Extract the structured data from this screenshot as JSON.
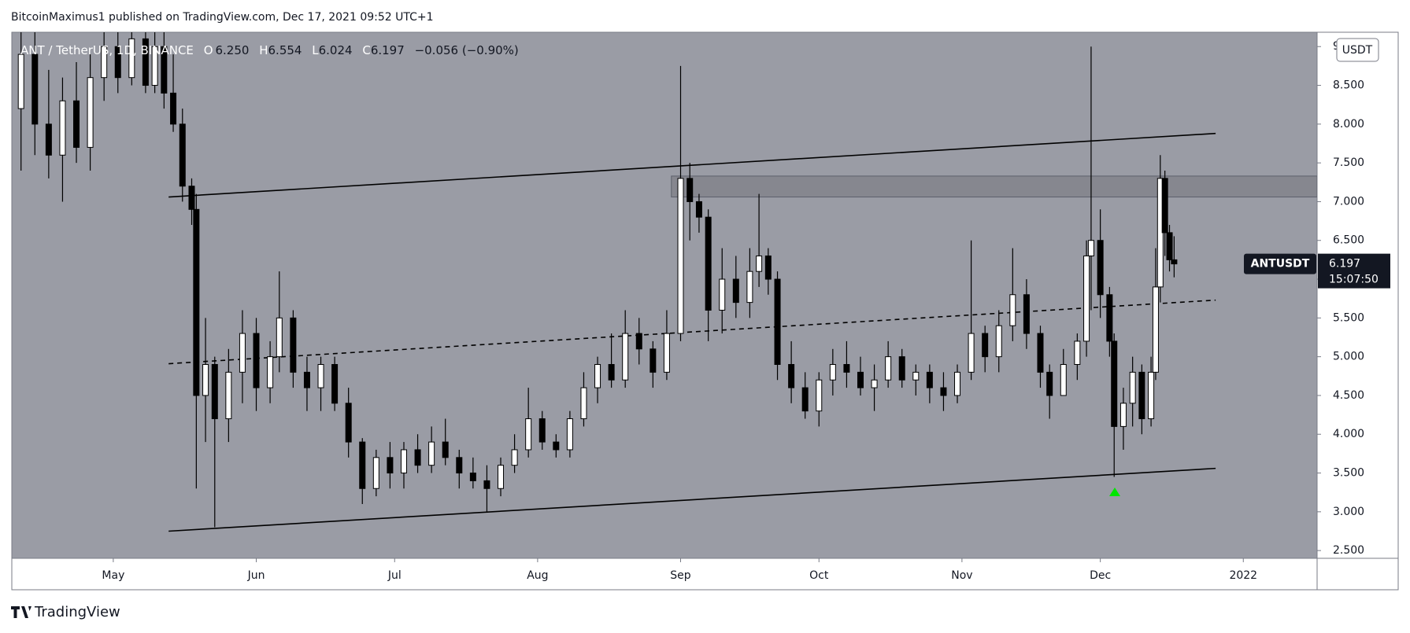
{
  "header": "BitcoinMaximus1 published on TradingView.com, Dec 17, 2021 09:52 UTC+1",
  "footer": "TradingView",
  "chart_data": {
    "type": "candlestick",
    "legend": {
      "symbol": "ANT / TetherUS, 1D, BINANCE",
      "fields": [
        {
          "key": "O",
          "value": "6.250"
        },
        {
          "key": "H",
          "value": "6.554"
        },
        {
          "key": "L",
          "value": "6.024"
        },
        {
          "key": "C",
          "value": "6.197"
        }
      ],
      "change": "−0.056 (−0.90%)"
    },
    "currency": "USDT",
    "symbol_tag": "ANTUSDT",
    "last_price": {
      "value": 6.197,
      "label": "6.197"
    },
    "countdown": "15:07:50",
    "background": "#9a9ca5",
    "up_color": "#ffffff",
    "down_color": "#000000",
    "xlim": [
      "2021-04-09",
      "2022-01-17"
    ],
    "xticks": [
      {
        "value": "2021-05-01",
        "label": "May"
      },
      {
        "value": "2021-06-01",
        "label": "Jun"
      },
      {
        "value": "2021-07-01",
        "label": "Jul"
      },
      {
        "value": "2021-08-01",
        "label": "Aug"
      },
      {
        "value": "2021-09-01",
        "label": "Sep"
      },
      {
        "value": "2021-10-01",
        "label": "Oct"
      },
      {
        "value": "2021-11-01",
        "label": "Nov"
      },
      {
        "value": "2021-12-01",
        "label": "Dec"
      },
      {
        "value": "2022-01-01",
        "label": "2022"
      }
    ],
    "ylim": [
      2.4,
      9.185
    ],
    "yticks": [
      {
        "value": 2.5,
        "label": "2.500"
      },
      {
        "value": 3,
        "label": "3.000"
      },
      {
        "value": 3.5,
        "label": "3.500"
      },
      {
        "value": 4,
        "label": "4.000"
      },
      {
        "value": 4.5,
        "label": "4.500"
      },
      {
        "value": 5,
        "label": "5.000"
      },
      {
        "value": 5.5,
        "label": "5.500"
      },
      {
        "value": 6,
        "label": "6.000"
      },
      {
        "value": 6.5,
        "label": "6.500"
      },
      {
        "value": 7,
        "label": "7.000"
      },
      {
        "value": 7.5,
        "label": "7.500"
      },
      {
        "value": 8,
        "label": "8.000"
      },
      {
        "value": 8.5,
        "label": "8.500"
      },
      {
        "value": 9,
        "label": "9"
      }
    ],
    "trendlines": [
      {
        "start": [
          "2021-05-13",
          7.06
        ],
        "end": [
          "2021-12-26",
          7.88
        ],
        "style": "solid"
      },
      {
        "start": [
          "2021-05-13",
          4.91
        ],
        "end": [
          "2021-12-26",
          5.73
        ],
        "style": "dashed"
      },
      {
        "start": [
          "2021-05-13",
          2.75
        ],
        "end": [
          "2021-12-26",
          3.56
        ],
        "style": "solid"
      }
    ],
    "zone": {
      "start": "2021-08-30",
      "low": 7.06,
      "high": 7.33
    },
    "x": [
      "2021-04-11",
      "2021-04-14",
      "2021-04-17",
      "2021-04-20",
      "2021-04-23",
      "2021-04-26",
      "2021-04-29",
      "2021-05-02",
      "2021-05-05",
      "2021-05-08",
      "2021-05-10",
      "2021-05-12",
      "2021-05-14",
      "2021-05-16",
      "2021-05-18",
      "2021-05-19",
      "2021-05-21",
      "2021-05-23",
      "2021-05-26",
      "2021-05-29",
      "2021-06-01",
      "2021-06-04",
      "2021-06-06",
      "2021-06-09",
      "2021-06-12",
      "2021-06-15",
      "2021-06-18",
      "2021-06-21",
      "2021-06-24",
      "2021-06-27",
      "2021-06-30",
      "2021-07-03",
      "2021-07-06",
      "2021-07-09",
      "2021-07-12",
      "2021-07-15",
      "2021-07-18",
      "2021-07-21",
      "2021-07-24",
      "2021-07-27",
      "2021-07-30",
      "2021-08-02",
      "2021-08-05",
      "2021-08-08",
      "2021-08-11",
      "2021-08-14",
      "2021-08-17",
      "2021-08-20",
      "2021-08-23",
      "2021-08-26",
      "2021-08-29",
      "2021-09-01",
      "2021-09-03",
      "2021-09-05",
      "2021-09-07",
      "2021-09-10",
      "2021-09-13",
      "2021-09-16",
      "2021-09-18",
      "2021-09-20",
      "2021-09-22",
      "2021-09-25",
      "2021-09-28",
      "2021-10-01",
      "2021-10-04",
      "2021-10-07",
      "2021-10-10",
      "2021-10-13",
      "2021-10-16",
      "2021-10-19",
      "2021-10-22",
      "2021-10-25",
      "2021-10-28",
      "2021-10-31",
      "2021-11-03",
      "2021-11-06",
      "2021-11-09",
      "2021-11-12",
      "2021-11-15",
      "2021-11-18",
      "2021-11-20",
      "2021-11-23",
      "2021-11-26",
      "2021-11-28",
      "2021-11-29",
      "2021-12-01",
      "2021-12-03",
      "2021-12-04",
      "2021-12-06",
      "2021-12-08",
      "2021-12-10",
      "2021-12-12",
      "2021-12-13",
      "2021-12-14",
      "2021-12-15",
      "2021-12-16",
      "2021-12-17"
    ],
    "open": [
      8.2,
      8.9,
      8.0,
      7.6,
      8.3,
      7.7,
      8.6,
      9.0,
      8.6,
      9.1,
      8.5,
      9.0,
      8.4,
      8.0,
      7.2,
      6.9,
      4.5,
      4.9,
      4.2,
      4.8,
      5.3,
      4.6,
      5.0,
      5.5,
      4.8,
      4.6,
      4.9,
      4.4,
      3.9,
      3.3,
      3.7,
      3.5,
      3.8,
      3.6,
      3.9,
      3.7,
      3.5,
      3.4,
      3.3,
      3.6,
      3.8,
      4.2,
      3.9,
      3.8,
      4.2,
      4.6,
      4.9,
      4.7,
      5.3,
      5.1,
      4.8,
      5.3,
      7.3,
      7.0,
      6.8,
      5.6,
      6.0,
      5.7,
      6.1,
      6.3,
      6.0,
      4.9,
      4.6,
      4.3,
      4.7,
      4.9,
      4.8,
      4.6,
      4.7,
      5.0,
      4.7,
      4.8,
      4.6,
      4.5,
      4.8,
      5.3,
      5.0,
      5.4,
      5.8,
      5.3,
      4.8,
      4.5,
      4.9,
      5.2,
      6.3,
      6.5,
      5.8,
      5.2,
      4.1,
      4.4,
      4.8,
      4.2,
      4.8,
      5.9,
      7.3,
      6.6,
      6.25
    ],
    "high": [
      9.2,
      9.2,
      8.7,
      8.6,
      8.8,
      8.9,
      9.2,
      9.2,
      9.2,
      9.2,
      9.2,
      9.2,
      8.9,
      8.2,
      7.3,
      7.1,
      5.5,
      5.0,
      5.1,
      5.6,
      5.5,
      5.2,
      6.1,
      5.6,
      5.0,
      5.0,
      5.0,
      4.6,
      3.95,
      3.8,
      3.9,
      3.9,
      4.0,
      4.1,
      4.2,
      3.8,
      3.7,
      3.6,
      3.7,
      4.0,
      4.6,
      4.3,
      4.0,
      4.3,
      4.8,
      5.0,
      5.3,
      5.6,
      5.5,
      5.2,
      5.6,
      8.75,
      7.5,
      7.1,
      6.9,
      6.4,
      6.3,
      6.4,
      7.1,
      6.4,
      6.1,
      5.2,
      4.8,
      4.8,
      5.1,
      5.2,
      5.0,
      4.9,
      5.2,
      5.1,
      4.9,
      4.9,
      4.8,
      4.9,
      6.5,
      5.4,
      5.6,
      6.4,
      6.0,
      5.4,
      4.9,
      5.1,
      5.3,
      6.5,
      9.0,
      6.9,
      5.9,
      5.3,
      4.6,
      5.0,
      4.9,
      5.0,
      6.4,
      7.6,
      7.4,
      6.7,
      6.554
    ],
    "low": [
      7.4,
      7.6,
      7.3,
      7.0,
      7.5,
      7.4,
      8.3,
      8.4,
      8.5,
      8.4,
      8.4,
      8.2,
      7.9,
      7.0,
      6.7,
      3.3,
      3.9,
      2.8,
      3.9,
      4.4,
      4.3,
      4.4,
      4.8,
      4.6,
      4.3,
      4.3,
      4.3,
      3.7,
      3.1,
      3.2,
      3.3,
      3.3,
      3.5,
      3.5,
      3.6,
      3.3,
      3.3,
      3.0,
      3.2,
      3.5,
      3.7,
      3.8,
      3.7,
      3.7,
      4.1,
      4.4,
      4.6,
      4.6,
      4.9,
      4.6,
      4.7,
      5.2,
      6.5,
      6.6,
      5.2,
      5.3,
      5.5,
      5.5,
      5.9,
      5.8,
      4.7,
      4.4,
      4.2,
      4.1,
      4.5,
      4.6,
      4.5,
      4.3,
      4.6,
      4.6,
      4.5,
      4.4,
      4.3,
      4.4,
      4.7,
      4.8,
      4.8,
      5.2,
      5.1,
      4.6,
      4.2,
      4.5,
      4.7,
      5.0,
      5.6,
      5.5,
      5.0,
      3.45,
      3.8,
      4.1,
      4.0,
      4.1,
      4.7,
      5.7,
      6.3,
      6.1,
      6.024
    ],
    "close": [
      8.9,
      8.0,
      7.6,
      8.3,
      7.7,
      8.6,
      9.0,
      8.6,
      9.1,
      8.5,
      9.0,
      8.4,
      8.0,
      7.2,
      6.9,
      4.5,
      4.9,
      4.2,
      4.8,
      5.3,
      4.6,
      5.0,
      5.5,
      4.8,
      4.6,
      4.9,
      4.4,
      3.9,
      3.3,
      3.7,
      3.5,
      3.8,
      3.6,
      3.9,
      3.7,
      3.5,
      3.4,
      3.3,
      3.6,
      3.8,
      4.2,
      3.9,
      3.8,
      4.2,
      4.6,
      4.9,
      4.7,
      5.3,
      5.1,
      4.8,
      5.3,
      7.3,
      7.0,
      6.8,
      5.6,
      6.0,
      5.7,
      6.1,
      6.3,
      6.0,
      4.9,
      4.6,
      4.3,
      4.7,
      4.9,
      4.8,
      4.6,
      4.7,
      5.0,
      4.7,
      4.8,
      4.6,
      4.5,
      4.8,
      5.3,
      5.0,
      5.4,
      5.8,
      5.3,
      4.8,
      4.5,
      4.9,
      5.2,
      6.3,
      6.5,
      5.8,
      5.2,
      4.1,
      4.4,
      4.8,
      4.2,
      4.8,
      5.9,
      7.3,
      6.6,
      6.25,
      6.197
    ]
  }
}
